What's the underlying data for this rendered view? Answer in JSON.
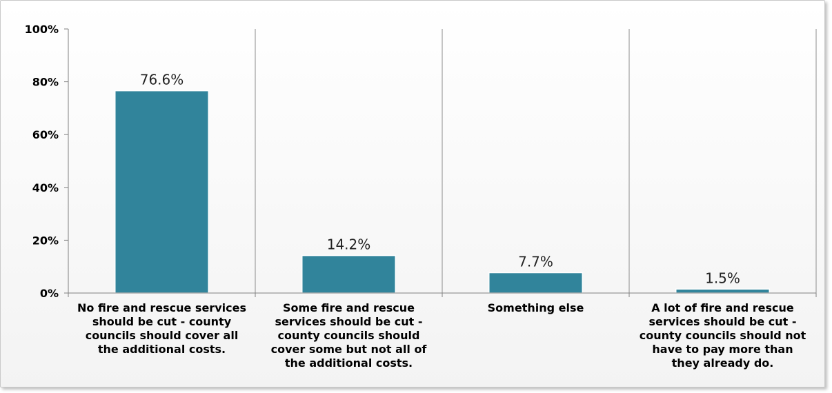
{
  "chart_data": {
    "type": "bar",
    "categories": [
      [
        "No fire and rescue services",
        "should be cut - county",
        "councils should cover all",
        "the additional costs."
      ],
      [
        "Some fire and rescue",
        "services should be cut -",
        "county councils should",
        "cover some but not all of",
        "the additional costs."
      ],
      [
        "Something else"
      ],
      [
        "A lot of fire and rescue",
        "services should be cut -",
        "county councils should not",
        "have to pay more than",
        "they already do."
      ]
    ],
    "values": [
      76.6,
      14.2,
      7.7,
      1.5
    ],
    "data_labels": [
      "76.6%",
      "14.2%",
      "7.7%",
      "1.5%"
    ],
    "ylim": [
      0,
      100
    ],
    "yticks": [
      0,
      20,
      40,
      60,
      80,
      100
    ],
    "ytick_labels": [
      "0%",
      "20%",
      "40%",
      "60%",
      "80%",
      "100%"
    ],
    "title": "",
    "xlabel": "",
    "ylabel": "",
    "grid": "vertical category separators",
    "colors": {
      "bar": "#31849b",
      "axis": "#808080",
      "grid": "#8c8c8c"
    }
  }
}
